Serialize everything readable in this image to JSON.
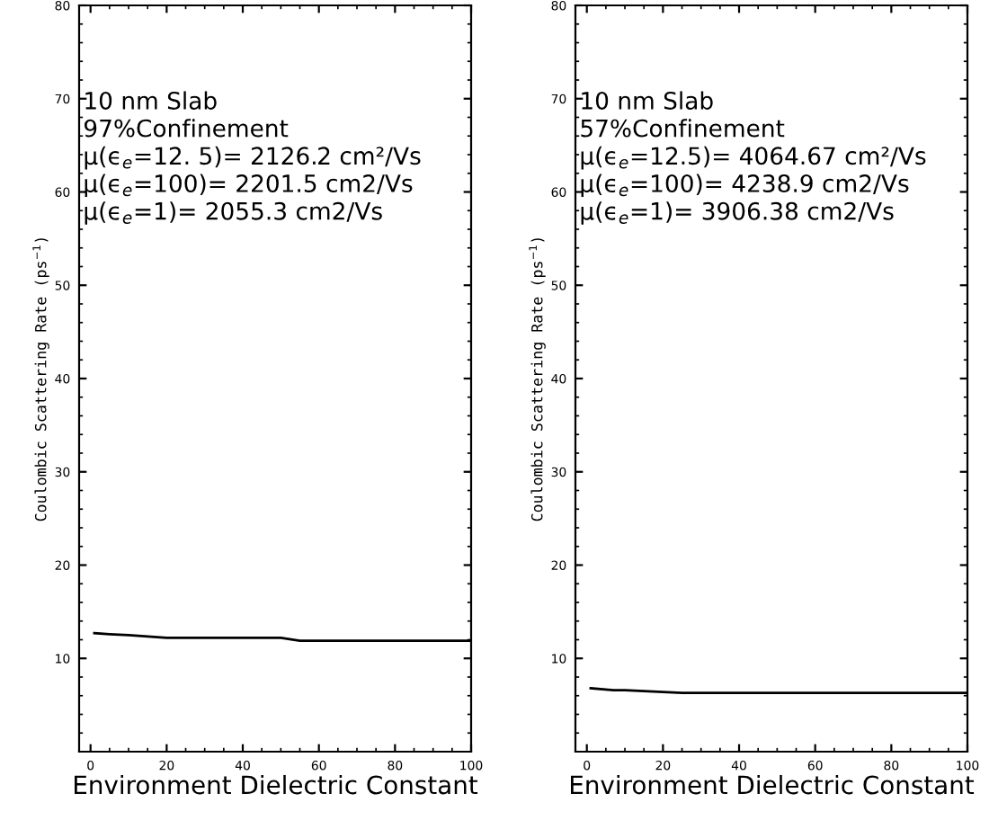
{
  "chart_data": [
    {
      "type": "line",
      "xlabel": "Environment Dielectric Constant",
      "ylabel": "Coulombic Scattering Rate (ps$^{−1}$)",
      "x": [
        1,
        5,
        10,
        20,
        30,
        50,
        55,
        70,
        100
      ],
      "series": [
        {
          "color": "#000000",
          "values": [
            12.7,
            12.6,
            12.5,
            12.2,
            12.2,
            12.2,
            11.9,
            11.9,
            11.9
          ]
        }
      ],
      "annotations": [
        "10 nm Slab",
        "97%Confinement",
        "μ(ϵ$_{e}$=12. 5)= 2126.2 cm²/Vs",
        "μ(ϵ$_{e}$=100)= 2201.5 cm2/Vs",
        "μ(ϵ$_{e}$=1)= 2055.3 cm2/Vs"
      ],
      "xlim": [
        -3,
        100
      ],
      "xticks": [
        0,
        20,
        40,
        60,
        80,
        100
      ],
      "ylim": [
        0,
        80
      ],
      "yticks": [
        10,
        20,
        30,
        40,
        50,
        60,
        70,
        80
      ],
      "grid": false,
      "legend": false,
      "marker": "none",
      "line_style": "solid"
    },
    {
      "type": "line",
      "xlabel": "Environment Dielectric Constant",
      "ylabel": "Coulombic Scattering Rate (ps$^{−1}$)",
      "x": [
        1,
        7,
        10,
        25,
        50,
        100
      ],
      "series": [
        {
          "color": "#000000",
          "values": [
            6.8,
            6.6,
            6.6,
            6.3,
            6.3,
            6.3
          ]
        }
      ],
      "annotations": [
        "10 nm Slab",
        "57%Confinement",
        "μ(ϵ$_{e}$=12.5)= 4064.67 cm²/Vs",
        "μ(ϵ$_{e}$=100)= 4238.9 cm2/Vs",
        "μ(ϵ$_{e}$=1)= 3906.38 cm2/Vs"
      ],
      "xlim": [
        -3,
        100
      ],
      "xticks": [
        0,
        20,
        40,
        60,
        80,
        100
      ],
      "ylim": [
        0,
        80
      ],
      "yticks": [
        10,
        20,
        30,
        40,
        50,
        60,
        70,
        80
      ],
      "grid": false,
      "legend": false,
      "marker": "none",
      "line_style": "solid"
    }
  ]
}
